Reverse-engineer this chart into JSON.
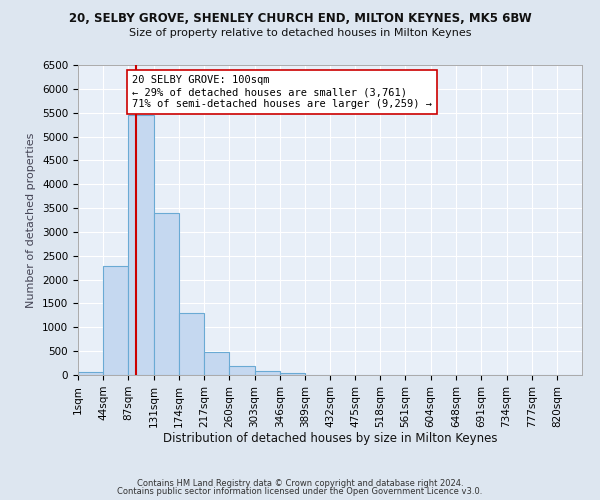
{
  "title": "20, SELBY GROVE, SHENLEY CHURCH END, MILTON KEYNES, MK5 6BW",
  "subtitle": "Size of property relative to detached houses in Milton Keynes",
  "xlabel": "Distribution of detached houses by size in Milton Keynes",
  "ylabel": "Number of detached properties",
  "bar_color": "#c5d8f0",
  "bar_edge_color": "#6aaad4",
  "background_color": "#e8eff8",
  "grid_color": "#ffffff",
  "annotation_line_color": "#cc0000",
  "annotation_box_line_color": "#cc0000",
  "annotation_line1": "20 SELBY GROVE: 100sqm",
  "annotation_line2": "← 29% of detached houses are smaller (3,761)",
  "annotation_line3": "71% of semi-detached houses are larger (9,259) →",
  "property_size": 100,
  "bin_edges": [
    1,
    44,
    87,
    131,
    174,
    217,
    260,
    303,
    346,
    389,
    432,
    475,
    518,
    561,
    604,
    648,
    691,
    734,
    777,
    820,
    863
  ],
  "bar_heights": [
    60,
    2280,
    5460,
    3390,
    1310,
    480,
    195,
    90,
    35,
    10,
    5,
    2,
    1,
    0,
    0,
    0,
    0,
    0,
    0,
    0
  ],
  "ylim": [
    0,
    6500
  ],
  "yticks": [
    0,
    500,
    1000,
    1500,
    2000,
    2500,
    3000,
    3500,
    4000,
    4500,
    5000,
    5500,
    6000,
    6500
  ],
  "footer_text1": "Contains HM Land Registry data © Crown copyright and database right 2024.",
  "footer_text2": "Contains public sector information licensed under the Open Government Licence v3.0.",
  "fig_bg_color": "#dde6f0",
  "title_fontsize": 8.5,
  "subtitle_fontsize": 8.0,
  "ylabel_fontsize": 8.0,
  "xlabel_fontsize": 8.5,
  "tick_fontsize": 7.5,
  "footer_fontsize": 6.0
}
